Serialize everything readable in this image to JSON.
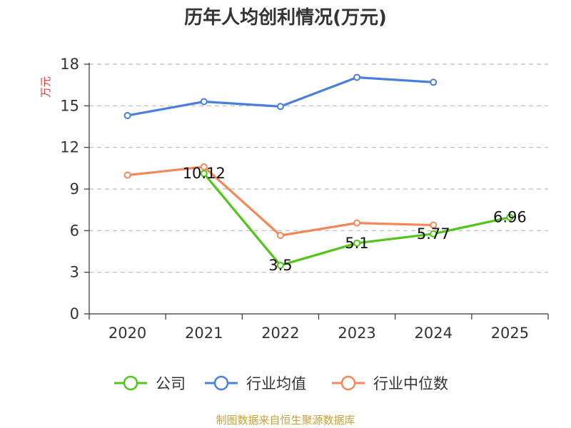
{
  "chart_data": {
    "type": "line",
    "title": "历年人均创利情况(万元)",
    "ylabel": "万元",
    "xlabel": "",
    "categories": [
      "2020",
      "2021",
      "2022",
      "2023",
      "2024",
      "2025"
    ],
    "ylim": [
      0,
      18
    ],
    "yticks": [
      0,
      3,
      6,
      9,
      12,
      15,
      18
    ],
    "grid": true,
    "legend_position": "bottom",
    "series": [
      {
        "name": "公司",
        "color": "#52c41a",
        "values": [
          null,
          10.12,
          3.5,
          5.1,
          5.77,
          6.96
        ],
        "labels": [
          null,
          "10.12",
          "3.5",
          "5.1",
          "5.77",
          "6.96"
        ]
      },
      {
        "name": "行业均值",
        "color": "#4a7fdc",
        "values": [
          14.3,
          15.3,
          14.95,
          17.05,
          16.7,
          null
        ]
      },
      {
        "name": "行业中位数",
        "color": "#f5885a",
        "values": [
          10.0,
          10.6,
          5.65,
          6.55,
          6.4,
          null
        ]
      }
    ]
  },
  "footer": "制图数据来自恒生聚源数据库"
}
